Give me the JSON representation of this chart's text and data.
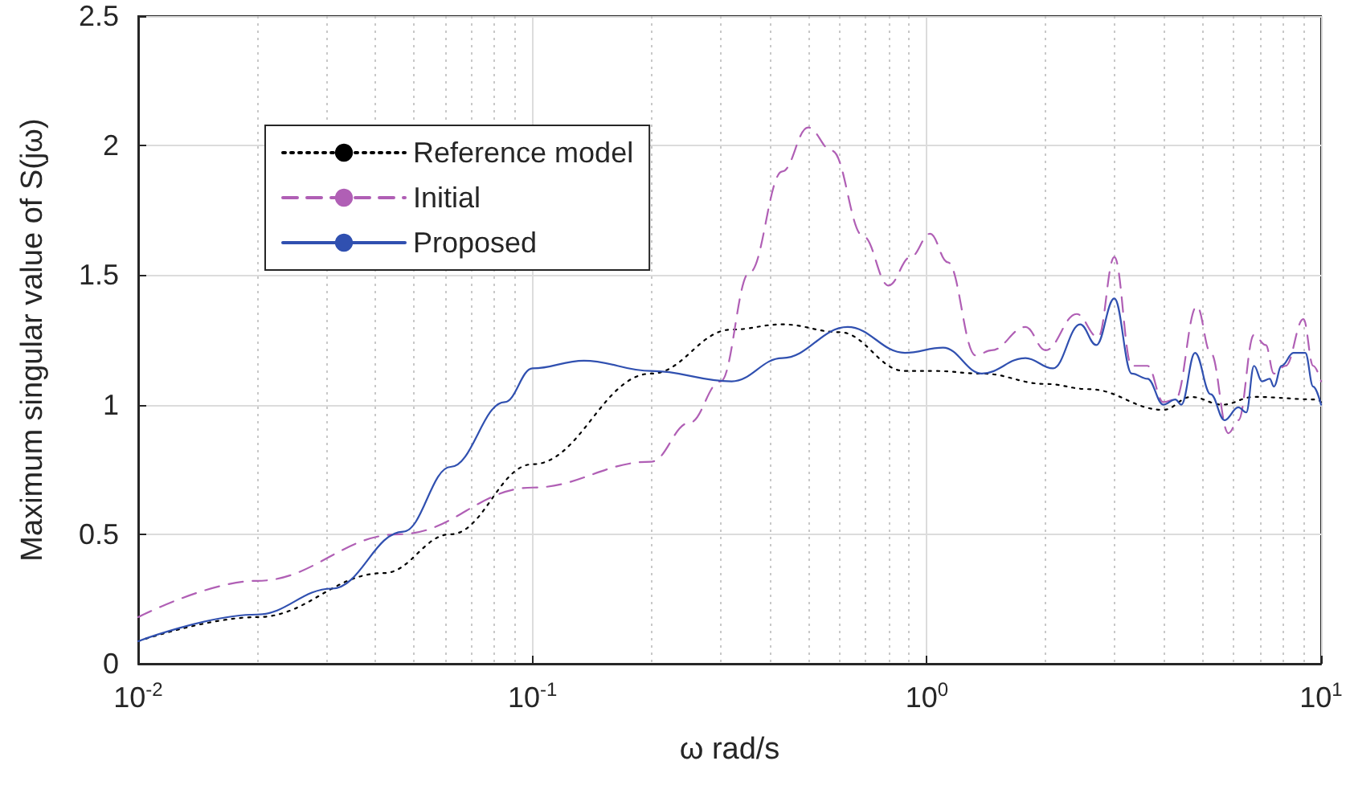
{
  "chart_data": {
    "type": "line",
    "xlabel": "ω rad/s",
    "ylabel": "Maximum singular value of S(jω)",
    "log": "x",
    "grid": true,
    "legend": "top left",
    "marker": "none",
    "xlim": [
      0.01,
      10
    ],
    "xticks": [
      {
        "value": 0.01,
        "label": "10$^{-2}$"
      },
      {
        "value": 0.1,
        "label": "10$^{-1}$"
      },
      {
        "value": 1,
        "label": "10$^{0}$"
      },
      {
        "value": 10,
        "label": "10$^{1}$"
      }
    ],
    "ylim": [
      0,
      2.5
    ],
    "yticks": [
      0,
      0.5,
      1,
      1.5,
      2,
      2.5
    ],
    "series": [
      {
        "name": "Reference model",
        "color": "#000000",
        "line_style": "dotted",
        "x": [
          0.01,
          0.02,
          0.042,
          0.062,
          0.1,
          0.2,
          0.32,
          0.43,
          0.6,
          0.88,
          1.05,
          1.38,
          2,
          2.57,
          3.98,
          4.68,
          5.62,
          6.76,
          9.77,
          10
        ],
        "values": [
          0.087,
          0.18,
          0.35,
          0.5,
          0.77,
          1.12,
          1.29,
          1.31,
          1.28,
          1.13,
          1.13,
          1.12,
          1.08,
          1.06,
          0.98,
          1.03,
          1.0,
          1.03,
          1.02,
          1.01
        ]
      },
      {
        "name": "Initial",
        "color": "#b05fb5",
        "line_style": "dashed",
        "x": [
          0.01,
          0.02,
          0.046,
          0.1,
          0.2,
          0.25,
          0.3,
          0.355,
          0.43,
          0.5,
          0.575,
          0.69,
          0.8,
          0.91,
          1.02,
          1.13,
          1.33,
          1.46,
          1.78,
          2,
          2.4,
          2.72,
          2.99,
          3.31,
          3.63,
          3.98,
          4.27,
          4.84,
          5.25,
          5.82,
          6.17,
          6.76,
          7.24,
          7.59,
          8.13,
          9.02,
          9.55,
          10
        ],
        "values": [
          0.18,
          0.32,
          0.5,
          0.68,
          0.78,
          0.93,
          1.09,
          1.51,
          1.9,
          2.07,
          1.98,
          1.65,
          1.46,
          1.57,
          1.66,
          1.55,
          1.19,
          1.21,
          1.3,
          1.21,
          1.35,
          1.26,
          1.57,
          1.15,
          1.15,
          1.01,
          1.02,
          1.38,
          1.2,
          0.89,
          0.94,
          1.27,
          1.23,
          1.12,
          1.15,
          1.33,
          1.15,
          1.09
        ]
      },
      {
        "name": "Proposed",
        "color": "#3050b0",
        "line_style": "solid",
        "x": [
          0.01,
          0.02,
          0.031,
          0.047,
          0.062,
          0.085,
          0.1,
          0.135,
          0.2,
          0.32,
          0.43,
          0.63,
          0.88,
          1.1,
          1.38,
          1.78,
          2.09,
          2.45,
          2.69,
          2.99,
          3.31,
          3.63,
          3.98,
          4.27,
          4.42,
          4.79,
          5.25,
          5.69,
          6.17,
          6.46,
          6.76,
          7.08,
          7.41,
          7.59,
          7.94,
          8.51,
          9.12,
          9.55,
          10
        ],
        "values": [
          0.087,
          0.19,
          0.29,
          0.51,
          0.76,
          1.01,
          1.14,
          1.17,
          1.13,
          1.09,
          1.18,
          1.3,
          1.2,
          1.22,
          1.12,
          1.18,
          1.14,
          1.31,
          1.23,
          1.41,
          1.12,
          1.1,
          1.0,
          1.02,
          1.0,
          1.2,
          1.04,
          0.94,
          0.99,
          0.97,
          1.15,
          1.09,
          1.1,
          1.07,
          1.15,
          1.2,
          1.2,
          1.07,
          1.0
        ]
      }
    ]
  }
}
